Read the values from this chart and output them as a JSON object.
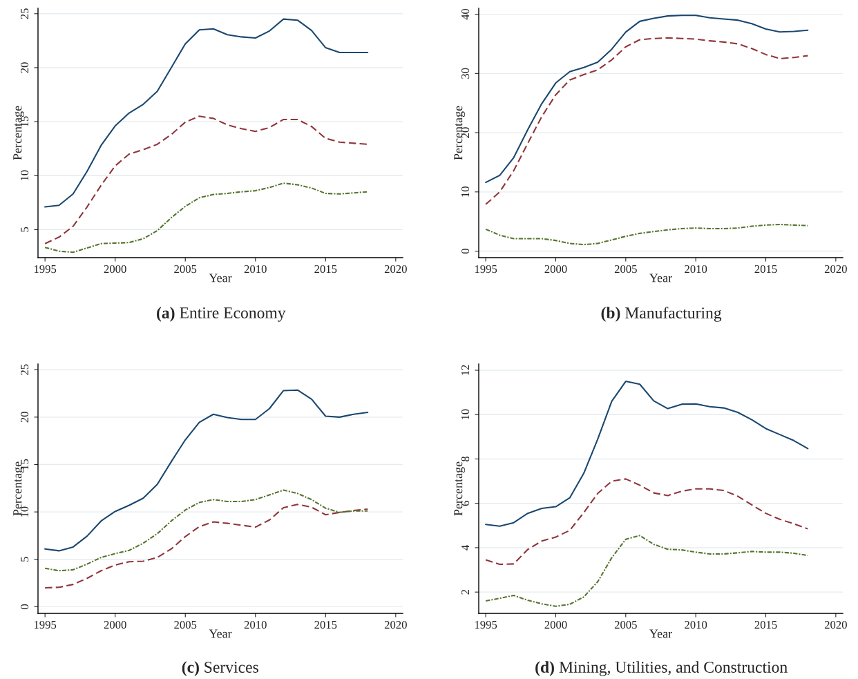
{
  "chart_data": [
    {
      "type": "line",
      "title": "(a) Entire Economy",
      "xlabel": "Year",
      "ylabel": "Percentage",
      "x": [
        1995,
        1996,
        1997,
        1998,
        1999,
        2000,
        2001,
        2002,
        2003,
        2004,
        2005,
        2006,
        2007,
        2008,
        2009,
        2010,
        2011,
        2012,
        2013,
        2014,
        2015,
        2016,
        2017,
        2018
      ],
      "xlim": [
        1994.5,
        2020.5
      ],
      "xticks": [
        1995,
        2000,
        2005,
        2010,
        2015,
        2020
      ],
      "ylim": [
        2.4,
        25.5
      ],
      "yticks": [
        5,
        10,
        15,
        20,
        25
      ],
      "grid": "y",
      "legend": false,
      "series": [
        {
          "color": "#1a476f",
          "line_style": "solid",
          "values": [
            7.1,
            7.25,
            8.3,
            10.4,
            12.8,
            14.6,
            15.8,
            16.6,
            17.8,
            20.0,
            22.2,
            23.5,
            23.6,
            23.05,
            22.85,
            22.75,
            23.4,
            24.5,
            24.4,
            23.45,
            21.85,
            21.4,
            21.4,
            21.4
          ]
        },
        {
          "color": "#90353b",
          "line_style": "dashed",
          "values": [
            3.7,
            4.3,
            5.3,
            7.1,
            9.1,
            10.9,
            12.0,
            12.4,
            12.9,
            13.8,
            14.95,
            15.5,
            15.3,
            14.7,
            14.35,
            14.1,
            14.45,
            15.2,
            15.2,
            14.55,
            13.45,
            13.1,
            13.0,
            12.9
          ]
        },
        {
          "color": "#55752f",
          "line_style": "dashdot",
          "values": [
            3.35,
            3.0,
            2.9,
            3.3,
            3.7,
            3.75,
            3.8,
            4.15,
            4.9,
            6.1,
            7.15,
            7.95,
            8.25,
            8.35,
            8.5,
            8.6,
            8.9,
            9.3,
            9.15,
            8.85,
            8.35,
            8.3,
            8.4,
            8.5
          ]
        }
      ]
    },
    {
      "type": "line",
      "title": "(b) Manufacturing",
      "xlabel": "Year",
      "ylabel": "Percentage",
      "x": [
        1995,
        1996,
        1997,
        1998,
        1999,
        2000,
        2001,
        2002,
        2003,
        2004,
        2005,
        2006,
        2007,
        2008,
        2009,
        2010,
        2011,
        2012,
        2013,
        2014,
        2015,
        2016,
        2017,
        2018
      ],
      "xlim": [
        1994.5,
        2020.5
      ],
      "xticks": [
        1995,
        2000,
        2005,
        2010,
        2015,
        2020
      ],
      "ylim": [
        -1.1,
        41
      ],
      "yticks": [
        0,
        10,
        20,
        30,
        40
      ],
      "grid": "y",
      "legend": false,
      "series": [
        {
          "color": "#1a476f",
          "line_style": "solid",
          "values": [
            11.6,
            12.8,
            15.8,
            20.5,
            24.9,
            28.4,
            30.3,
            31.0,
            31.9,
            34.1,
            37.0,
            38.8,
            39.3,
            39.7,
            39.8,
            39.8,
            39.4,
            39.2,
            39.0,
            38.4,
            37.5,
            37.0,
            37.1,
            37.3
          ]
        },
        {
          "color": "#90353b",
          "line_style": "dashed",
          "values": [
            7.9,
            10.0,
            13.6,
            18.2,
            22.7,
            26.4,
            28.9,
            29.8,
            30.6,
            32.3,
            34.5,
            35.7,
            35.9,
            36.0,
            35.9,
            35.8,
            35.5,
            35.3,
            35.0,
            34.2,
            33.2,
            32.5,
            32.7,
            33.0
          ]
        },
        {
          "color": "#55752f",
          "line_style": "dashdot",
          "values": [
            3.7,
            2.7,
            2.1,
            2.1,
            2.1,
            1.8,
            1.3,
            1.1,
            1.3,
            1.9,
            2.5,
            3.0,
            3.3,
            3.6,
            3.8,
            3.9,
            3.8,
            3.8,
            3.9,
            4.2,
            4.4,
            4.5,
            4.4,
            4.3
          ]
        }
      ]
    },
    {
      "type": "line",
      "title": "(c) Services",
      "xlabel": "Year",
      "ylabel": "Percentage",
      "x": [
        1995,
        1996,
        1997,
        1998,
        1999,
        2000,
        2001,
        2002,
        2003,
        2004,
        2005,
        2006,
        2007,
        2008,
        2009,
        2010,
        2011,
        2012,
        2013,
        2014,
        2015,
        2016,
        2017,
        2018
      ],
      "xlim": [
        1994.5,
        2020.5
      ],
      "xticks": [
        1995,
        2000,
        2005,
        2010,
        2015,
        2020
      ],
      "ylim": [
        -0.7,
        25.6
      ],
      "yticks": [
        0,
        5,
        10,
        15,
        20,
        25
      ],
      "grid": "y",
      "legend": false,
      "series": [
        {
          "color": "#1a476f",
          "line_style": "solid",
          "values": [
            6.1,
            5.9,
            6.3,
            7.45,
            9.05,
            10.05,
            10.7,
            11.45,
            12.9,
            15.3,
            17.6,
            19.45,
            20.3,
            19.95,
            19.75,
            19.75,
            20.9,
            22.8,
            22.85,
            21.9,
            20.1,
            20.0,
            20.3,
            20.5
          ]
        },
        {
          "color": "#90353b",
          "line_style": "dashed",
          "values": [
            2.0,
            2.05,
            2.35,
            3.0,
            3.8,
            4.4,
            4.75,
            4.8,
            5.2,
            6.1,
            7.4,
            8.45,
            8.95,
            8.8,
            8.6,
            8.4,
            9.15,
            10.45,
            10.8,
            10.5,
            9.7,
            9.95,
            10.15,
            10.3
          ]
        },
        {
          "color": "#55752f",
          "line_style": "dashdot",
          "values": [
            4.05,
            3.8,
            3.9,
            4.5,
            5.2,
            5.6,
            5.95,
            6.7,
            7.7,
            9.05,
            10.2,
            11.0,
            11.3,
            11.1,
            11.1,
            11.3,
            11.8,
            12.3,
            11.95,
            11.3,
            10.4,
            9.95,
            10.1,
            10.1
          ]
        }
      ]
    },
    {
      "type": "line",
      "title": "(d) Mining, Utilities, and Construction",
      "xlabel": "Year",
      "ylabel": "Percentage",
      "x": [
        1995,
        1996,
        1997,
        1998,
        1999,
        2000,
        2001,
        2002,
        2003,
        2004,
        2005,
        2006,
        2007,
        2008,
        2009,
        2010,
        2011,
        2012,
        2013,
        2014,
        2015,
        2016,
        2017,
        2018
      ],
      "xlim": [
        1994.5,
        2020.5
      ],
      "xticks": [
        1995,
        2000,
        2005,
        2010,
        2015,
        2020
      ],
      "ylim": [
        1.04,
        12.28
      ],
      "yticks": [
        2,
        4,
        6,
        8,
        10,
        12
      ],
      "grid": "y",
      "legend": false,
      "series": [
        {
          "color": "#1a476f",
          "line_style": "solid",
          "values": [
            5.05,
            4.97,
            5.13,
            5.55,
            5.77,
            5.85,
            6.25,
            7.35,
            8.9,
            10.6,
            11.5,
            11.37,
            10.62,
            10.27,
            10.47,
            10.48,
            10.36,
            10.3,
            10.1,
            9.77,
            9.37,
            9.1,
            8.83,
            8.47
          ]
        },
        {
          "color": "#90353b",
          "line_style": "dashed",
          "values": [
            3.45,
            3.25,
            3.27,
            3.92,
            4.3,
            4.48,
            4.78,
            5.58,
            6.45,
            7.0,
            7.1,
            6.82,
            6.47,
            6.35,
            6.55,
            6.65,
            6.65,
            6.58,
            6.32,
            5.93,
            5.55,
            5.28,
            5.08,
            4.85
          ]
        },
        {
          "color": "#55752f",
          "line_style": "dashdot",
          "values": [
            1.6,
            1.72,
            1.85,
            1.63,
            1.47,
            1.36,
            1.45,
            1.78,
            2.47,
            3.55,
            4.38,
            4.55,
            4.15,
            3.93,
            3.9,
            3.8,
            3.72,
            3.72,
            3.77,
            3.83,
            3.8,
            3.8,
            3.75,
            3.65
          ]
        }
      ]
    }
  ]
}
